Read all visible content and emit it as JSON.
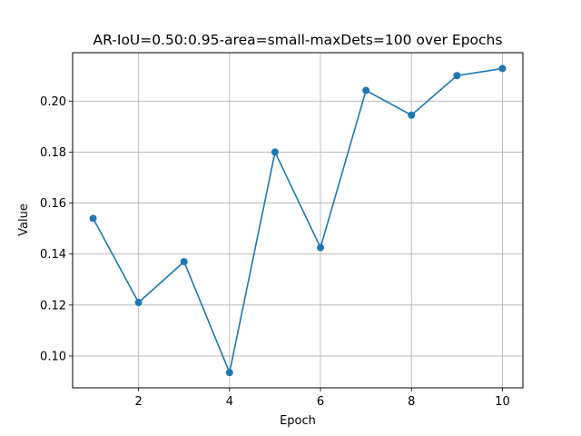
{
  "chart_data": {
    "type": "line",
    "title": "AR-IoU=0.50:0.95-area=small-maxDets=100 over Epochs",
    "xlabel": "Epoch",
    "ylabel": "Value",
    "x": [
      1,
      2,
      3,
      4,
      5,
      6,
      7,
      8,
      9,
      10
    ],
    "series": [
      {
        "values": [
          0.154,
          0.121,
          0.137,
          0.0935,
          0.18,
          0.1425,
          0.2042,
          0.1945,
          0.21,
          0.2128
        ]
      }
    ],
    "xticks": [
      "2",
      "4",
      "6",
      "8",
      "10"
    ],
    "yticks": [
      "0.10",
      "0.12",
      "0.14",
      "0.16",
      "0.18",
      "0.20"
    ],
    "xlim": [
      0.55,
      10.45
    ],
    "ylim": [
      0.0875,
      0.219
    ],
    "grid": true,
    "line_color": "#1f77b4"
  }
}
